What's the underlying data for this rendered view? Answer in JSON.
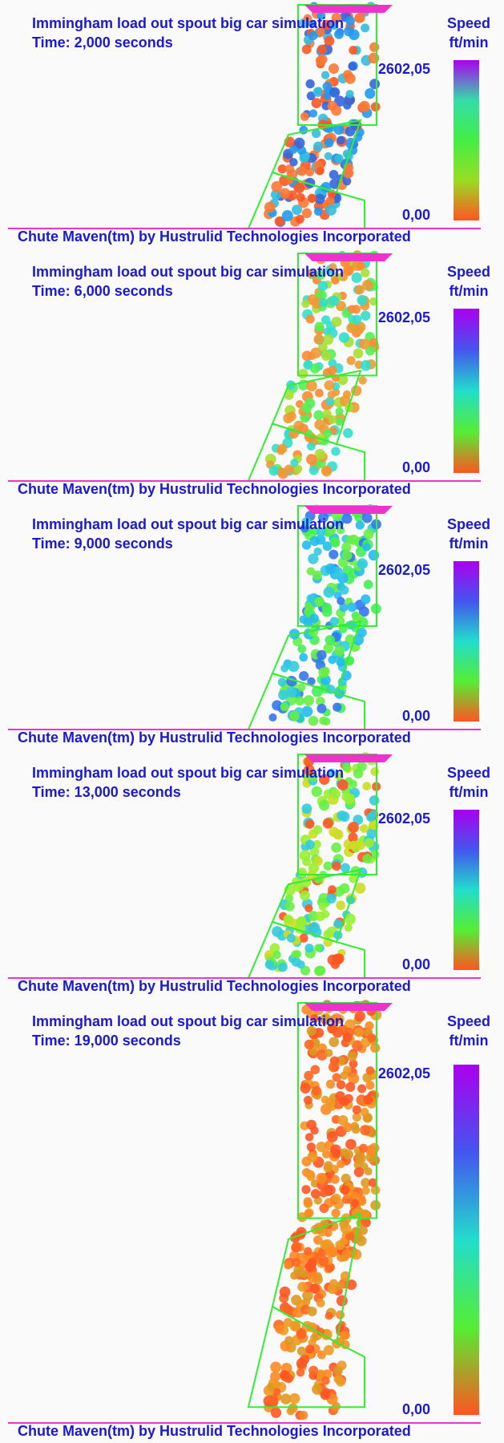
{
  "panels": [
    {
      "title": "Immingham load out spout big car simulation",
      "time": "Time: 2,000 seconds",
      "legend_title": "Speed",
      "legend_unit": "ft/min",
      "max_label": "2602,05",
      "min_label": "0,00",
      "footer": "Chute Maven(tm) by Hustrulid Technologies Incorporated"
    },
    {
      "title": "Immingham load out spout big car simulation",
      "time": "Time: 6,000 seconds",
      "legend_title": "Speed",
      "legend_unit": "ft/min",
      "max_label": "2602,05",
      "min_label": "0,00",
      "footer": "Chute Maven(tm) by Hustrulid Technologies Incorporated"
    },
    {
      "title": "Immingham load out spout big car simulation",
      "time": "Time: 9,000 seconds",
      "legend_title": "Speed",
      "legend_unit": "ft/min",
      "max_label": "2602,05",
      "min_label": "0,00",
      "footer": "Chute Maven(tm) by Hustrulid Technologies Incorporated"
    },
    {
      "title": "Immingham load out spout big car simulation",
      "time": "Time: 13,000 seconds",
      "legend_title": "Speed",
      "legend_unit": "ft/min",
      "max_label": "2602,05",
      "min_label": "0,00",
      "footer": "Chute Maven(tm) by Hustrulid Technologies Incorporated"
    },
    {
      "title": "Immingham load out spout big car simulation",
      "time": "Time: 19,000 seconds",
      "legend_title": "Speed",
      "legend_unit": "ft/min",
      "max_label": "2602,05",
      "min_label": "0,00",
      "footer": "Chute Maven(tm) by Hustrulid Technologies Incorporated"
    }
  ]
}
